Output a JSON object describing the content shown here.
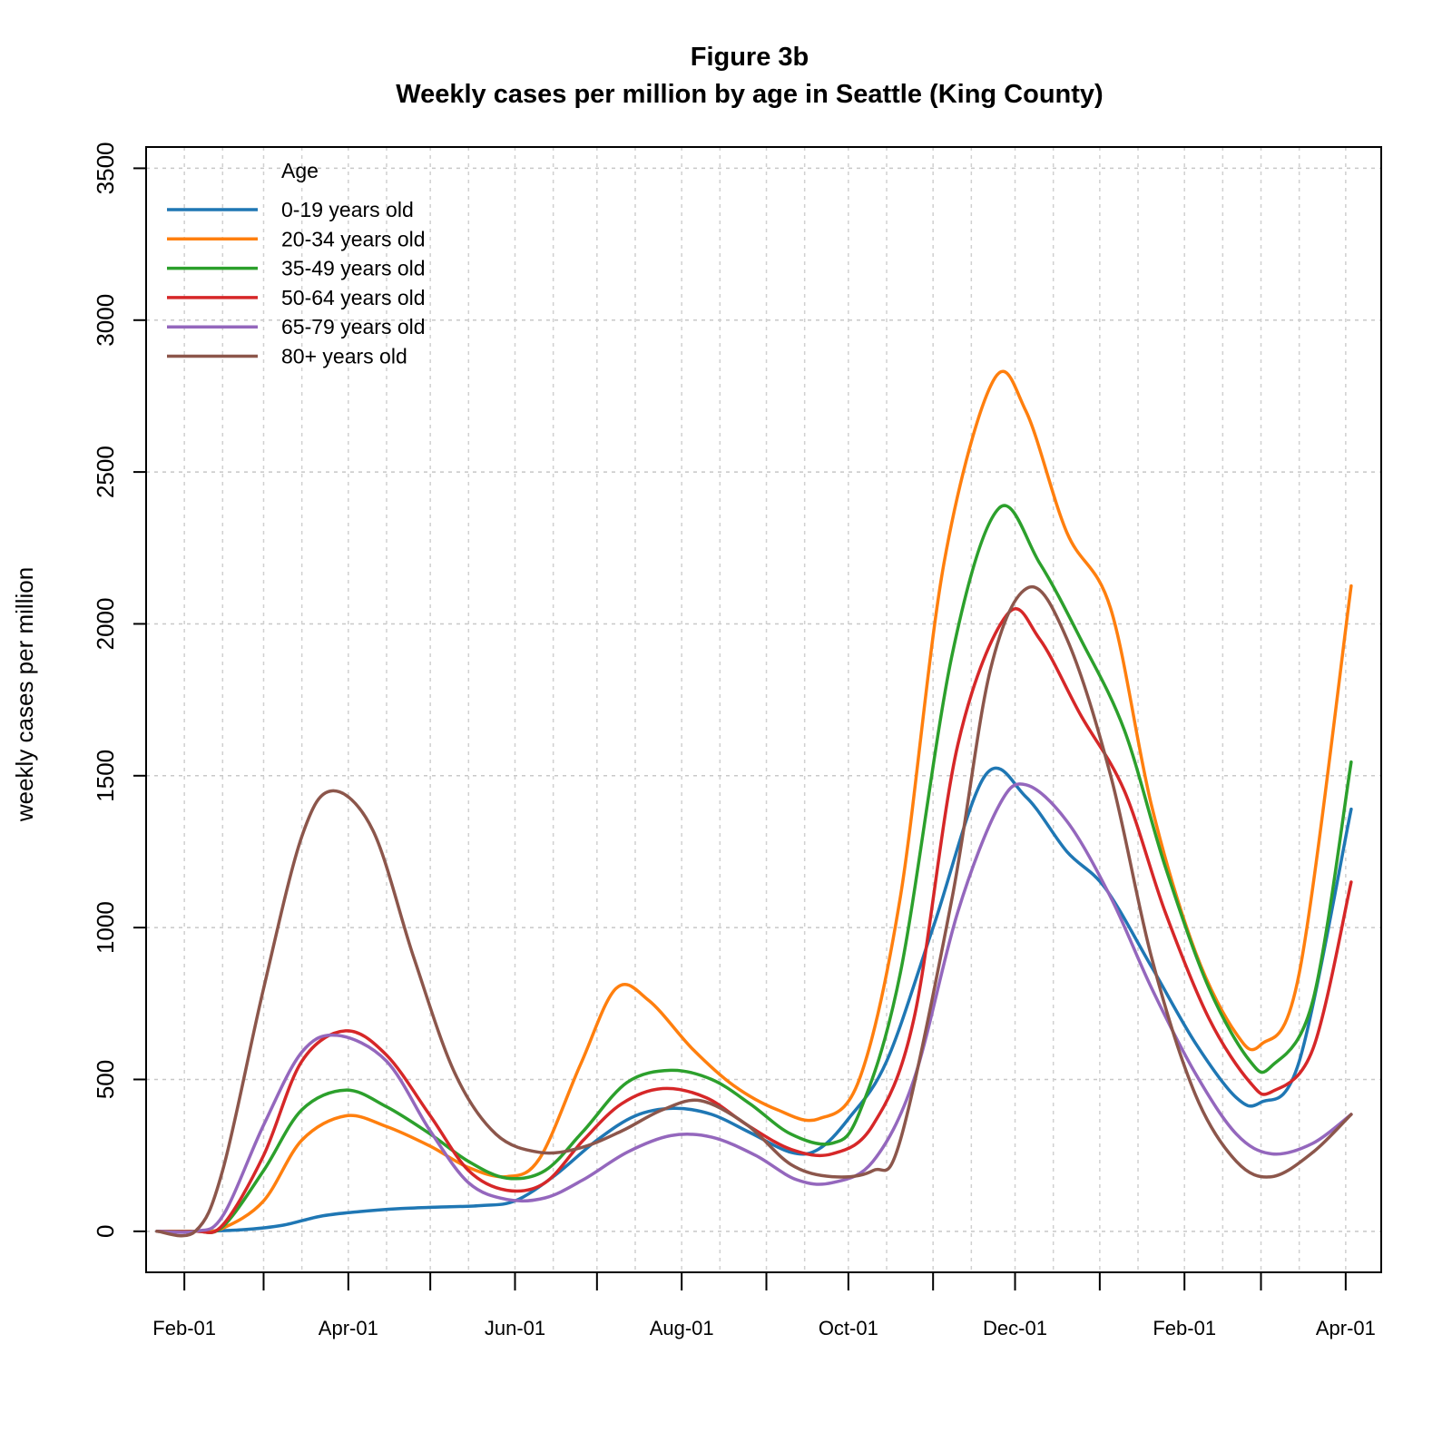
{
  "chart_data": {
    "type": "line",
    "title": "Figure 3b",
    "subtitle": "Weekly cases per million by age in Seattle (King County)",
    "xlabel": "",
    "ylabel": "weekly cases per million",
    "x_axis": {
      "type": "date",
      "range": [
        "2020-01-18",
        "2021-04-14"
      ],
      "tick_labels": [
        "Feb-01",
        "Apr-01",
        "Jun-01",
        "Aug-01",
        "Oct-01",
        "Dec-01",
        "Feb-01",
        "Apr-01"
      ],
      "tick_dates": [
        "2020-02-01",
        "2020-04-01",
        "2020-06-01",
        "2020-08-01",
        "2020-10-01",
        "2020-12-01",
        "2021-02-01",
        "2021-04-01"
      ]
    },
    "y_axis": {
      "range": [
        -135,
        3570
      ],
      "ticks": [
        0,
        500,
        1000,
        1500,
        2000,
        2500,
        3000,
        3500
      ]
    },
    "grid": true,
    "legend": {
      "title": "Age",
      "placement": "top-left"
    },
    "series": [
      {
        "name": "0-19 years old",
        "color": "#1f77b4",
        "points": [
          [
            "2020-01-22",
            0
          ],
          [
            "2020-02-05",
            0
          ],
          [
            "2020-02-22",
            5
          ],
          [
            "2020-03-08",
            20
          ],
          [
            "2020-03-22",
            50
          ],
          [
            "2020-04-05",
            65
          ],
          [
            "2020-04-20",
            75
          ],
          [
            "2020-05-05",
            80
          ],
          [
            "2020-05-20",
            85
          ],
          [
            "2020-06-01",
            100
          ],
          [
            "2020-06-15",
            180
          ],
          [
            "2020-07-01",
            300
          ],
          [
            "2020-07-15",
            380
          ],
          [
            "2020-07-29",
            405
          ],
          [
            "2020-08-12",
            385
          ],
          [
            "2020-08-26",
            325
          ],
          [
            "2020-09-10",
            260
          ],
          [
            "2020-09-20",
            270
          ],
          [
            "2020-10-01",
            370
          ],
          [
            "2020-10-15",
            560
          ],
          [
            "2020-11-01",
            1000
          ],
          [
            "2020-11-20",
            1500
          ],
          [
            "2020-12-05",
            1430
          ],
          [
            "2020-12-20",
            1250
          ],
          [
            "2021-01-03",
            1130
          ],
          [
            "2021-01-20",
            870
          ],
          [
            "2021-02-05",
            620
          ],
          [
            "2021-02-20",
            440
          ],
          [
            "2021-03-01",
            425
          ],
          [
            "2021-03-15",
            560
          ],
          [
            "2021-04-03",
            1390
          ]
        ]
      },
      {
        "name": "20-34 years old",
        "color": "#ff7f0e",
        "points": [
          [
            "2020-01-22",
            0
          ],
          [
            "2020-02-05",
            0
          ],
          [
            "2020-02-15",
            10
          ],
          [
            "2020-03-01",
            100
          ],
          [
            "2020-03-15",
            300
          ],
          [
            "2020-03-31",
            380
          ],
          [
            "2020-04-15",
            345
          ],
          [
            "2020-05-01",
            280
          ],
          [
            "2020-05-15",
            210
          ],
          [
            "2020-05-29",
            180
          ],
          [
            "2020-06-10",
            240
          ],
          [
            "2020-06-25",
            550
          ],
          [
            "2020-07-08",
            800
          ],
          [
            "2020-07-20",
            760
          ],
          [
            "2020-08-05",
            600
          ],
          [
            "2020-08-20",
            480
          ],
          [
            "2020-09-05",
            400
          ],
          [
            "2020-09-20",
            370
          ],
          [
            "2020-10-05",
            500
          ],
          [
            "2020-10-20",
            1100
          ],
          [
            "2020-11-05",
            2200
          ],
          [
            "2020-11-23",
            2800
          ],
          [
            "2020-12-05",
            2700
          ],
          [
            "2020-12-20",
            2300
          ],
          [
            "2021-01-05",
            2050
          ],
          [
            "2021-01-20",
            1400
          ],
          [
            "2021-02-05",
            920
          ],
          [
            "2021-02-20",
            650
          ],
          [
            "2021-03-01",
            615
          ],
          [
            "2021-03-15",
            850
          ],
          [
            "2021-04-03",
            2125
          ]
        ]
      },
      {
        "name": "35-49 years old",
        "color": "#2ca02c",
        "points": [
          [
            "2020-01-22",
            0
          ],
          [
            "2020-02-05",
            0
          ],
          [
            "2020-02-15",
            15
          ],
          [
            "2020-03-01",
            200
          ],
          [
            "2020-03-15",
            400
          ],
          [
            "2020-03-31",
            465
          ],
          [
            "2020-04-15",
            410
          ],
          [
            "2020-05-01",
            320
          ],
          [
            "2020-05-15",
            230
          ],
          [
            "2020-05-29",
            175
          ],
          [
            "2020-06-12",
            200
          ],
          [
            "2020-06-26",
            330
          ],
          [
            "2020-07-12",
            490
          ],
          [
            "2020-07-28",
            530
          ],
          [
            "2020-08-12",
            500
          ],
          [
            "2020-08-26",
            420
          ],
          [
            "2020-09-10",
            320
          ],
          [
            "2020-09-25",
            290
          ],
          [
            "2020-10-05",
            390
          ],
          [
            "2020-10-20",
            850
          ],
          [
            "2020-11-08",
            1900
          ],
          [
            "2020-11-25",
            2380
          ],
          [
            "2020-12-10",
            2200
          ],
          [
            "2020-12-25",
            1950
          ],
          [
            "2021-01-10",
            1650
          ],
          [
            "2021-01-25",
            1200
          ],
          [
            "2021-02-10",
            800
          ],
          [
            "2021-02-25",
            560
          ],
          [
            "2021-03-05",
            545
          ],
          [
            "2021-03-20",
            760
          ],
          [
            "2021-04-03",
            1545
          ]
        ]
      },
      {
        "name": "50-64 years old",
        "color": "#d62728",
        "points": [
          [
            "2020-01-22",
            0
          ],
          [
            "2020-02-05",
            0
          ],
          [
            "2020-02-15",
            20
          ],
          [
            "2020-03-01",
            250
          ],
          [
            "2020-03-15",
            560
          ],
          [
            "2020-03-31",
            660
          ],
          [
            "2020-04-15",
            580
          ],
          [
            "2020-05-01",
            380
          ],
          [
            "2020-05-15",
            200
          ],
          [
            "2020-05-29",
            135
          ],
          [
            "2020-06-12",
            160
          ],
          [
            "2020-06-26",
            300
          ],
          [
            "2020-07-10",
            420
          ],
          [
            "2020-07-25",
            470
          ],
          [
            "2020-08-10",
            440
          ],
          [
            "2020-08-25",
            350
          ],
          [
            "2020-09-10",
            270
          ],
          [
            "2020-09-25",
            255
          ],
          [
            "2020-10-10",
            350
          ],
          [
            "2020-10-25",
            700
          ],
          [
            "2020-11-10",
            1600
          ],
          [
            "2020-11-28",
            2030
          ],
          [
            "2020-12-10",
            1950
          ],
          [
            "2020-12-25",
            1700
          ],
          [
            "2021-01-10",
            1450
          ],
          [
            "2021-01-25",
            1050
          ],
          [
            "2021-02-10",
            700
          ],
          [
            "2021-02-25",
            490
          ],
          [
            "2021-03-05",
            460
          ],
          [
            "2021-03-20",
            600
          ],
          [
            "2021-04-03",
            1150
          ]
        ]
      },
      {
        "name": "65-79 years old",
        "color": "#9467bd",
        "points": [
          [
            "2020-01-22",
            0
          ],
          [
            "2020-02-05",
            0
          ],
          [
            "2020-02-15",
            50
          ],
          [
            "2020-03-01",
            350
          ],
          [
            "2020-03-15",
            590
          ],
          [
            "2020-03-28",
            645
          ],
          [
            "2020-04-15",
            560
          ],
          [
            "2020-05-01",
            330
          ],
          [
            "2020-05-15",
            160
          ],
          [
            "2020-05-29",
            105
          ],
          [
            "2020-06-12",
            110
          ],
          [
            "2020-06-26",
            170
          ],
          [
            "2020-07-12",
            260
          ],
          [
            "2020-07-28",
            315
          ],
          [
            "2020-08-12",
            310
          ],
          [
            "2020-08-28",
            250
          ],
          [
            "2020-09-12",
            170
          ],
          [
            "2020-09-25",
            160
          ],
          [
            "2020-10-10",
            230
          ],
          [
            "2020-10-25",
            500
          ],
          [
            "2020-11-10",
            1050
          ],
          [
            "2020-11-25",
            1400
          ],
          [
            "2020-12-05",
            1470
          ],
          [
            "2020-12-20",
            1350
          ],
          [
            "2021-01-05",
            1100
          ],
          [
            "2021-01-20",
            800
          ],
          [
            "2021-02-05",
            520
          ],
          [
            "2021-02-20",
            320
          ],
          [
            "2021-03-05",
            255
          ],
          [
            "2021-03-20",
            290
          ],
          [
            "2021-04-03",
            385
          ]
        ]
      },
      {
        "name": "80+ years old",
        "color": "#8c564b",
        "points": [
          [
            "2020-01-22",
            0
          ],
          [
            "2020-02-05",
            0
          ],
          [
            "2020-02-15",
            200
          ],
          [
            "2020-03-01",
            800
          ],
          [
            "2020-03-15",
            1300
          ],
          [
            "2020-03-26",
            1450
          ],
          [
            "2020-04-10",
            1320
          ],
          [
            "2020-04-25",
            900
          ],
          [
            "2020-05-10",
            520
          ],
          [
            "2020-05-25",
            320
          ],
          [
            "2020-06-10",
            260
          ],
          [
            "2020-06-25",
            275
          ],
          [
            "2020-07-10",
            330
          ],
          [
            "2020-07-25",
            400
          ],
          [
            "2020-08-08",
            430
          ],
          [
            "2020-08-25",
            350
          ],
          [
            "2020-09-10",
            220
          ],
          [
            "2020-09-25",
            180
          ],
          [
            "2020-10-10",
            200
          ],
          [
            "2020-10-20",
            300
          ],
          [
            "2020-11-08",
            1100
          ],
          [
            "2020-11-22",
            1850
          ],
          [
            "2020-12-06",
            2120
          ],
          [
            "2020-12-20",
            1950
          ],
          [
            "2021-01-05",
            1500
          ],
          [
            "2021-01-20",
            900
          ],
          [
            "2021-02-05",
            450
          ],
          [
            "2021-02-20",
            230
          ],
          [
            "2021-03-05",
            180
          ],
          [
            "2021-03-20",
            260
          ],
          [
            "2021-04-03",
            385
          ]
        ]
      }
    ]
  }
}
